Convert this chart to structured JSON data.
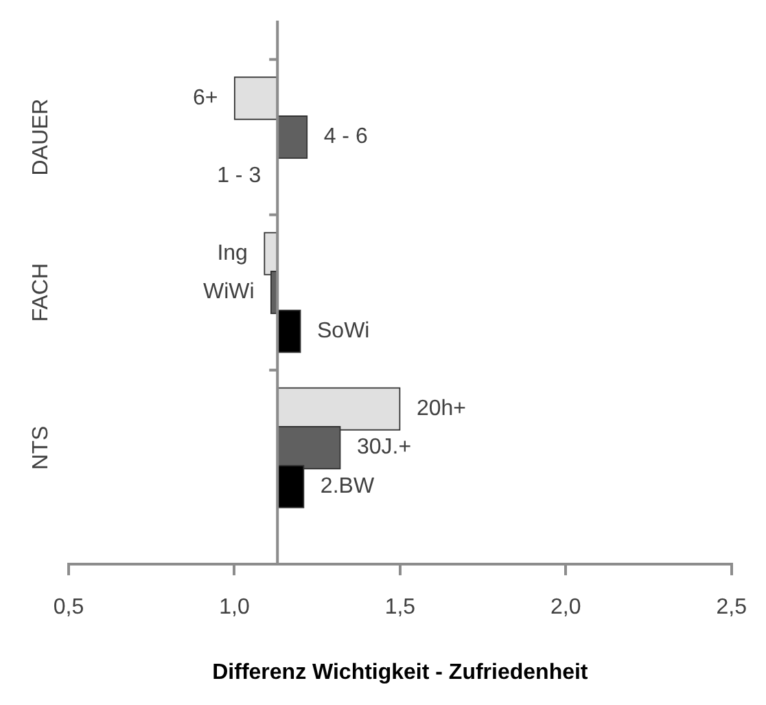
{
  "chart_data": {
    "type": "bar",
    "orientation": "horizontal",
    "xlabel": "Differenz Wichtigkeit - Zufriedenheit",
    "categories": [
      "6+",
      "4 - 6",
      "1 - 3",
      "Ing",
      "WiWi",
      "SoWi",
      "20h+",
      "30J.+",
      "2.BW"
    ],
    "base": [
      1.13,
      1.13,
      1.13,
      1.13,
      1.13,
      1.13,
      1.13,
      1.13,
      1.13
    ],
    "values": [
      -0.13,
      0.09,
      0,
      -0.04,
      -0.02,
      0.07,
      0.37,
      0.19,
      0.08
    ],
    "colors": [
      "#e0e0e0",
      "#606060",
      "#000000",
      "#e0e0e0",
      "#606060",
      "#000000",
      "#e0e0e0",
      "#606060",
      "#000000"
    ],
    "xlim": [
      0.5,
      2.5
    ],
    "xticks": [
      {
        "value": 0.5,
        "label": "0,5"
      },
      {
        "value": 1.0,
        "label": "1,0"
      },
      {
        "value": 1.5,
        "label": "1,5"
      },
      {
        "value": 2.0,
        "label": "2,0"
      },
      {
        "value": 2.5,
        "label": "2,5"
      }
    ],
    "annotations": [
      "DAUER",
      "FACH",
      "NTS"
    ],
    "grid": false
  }
}
